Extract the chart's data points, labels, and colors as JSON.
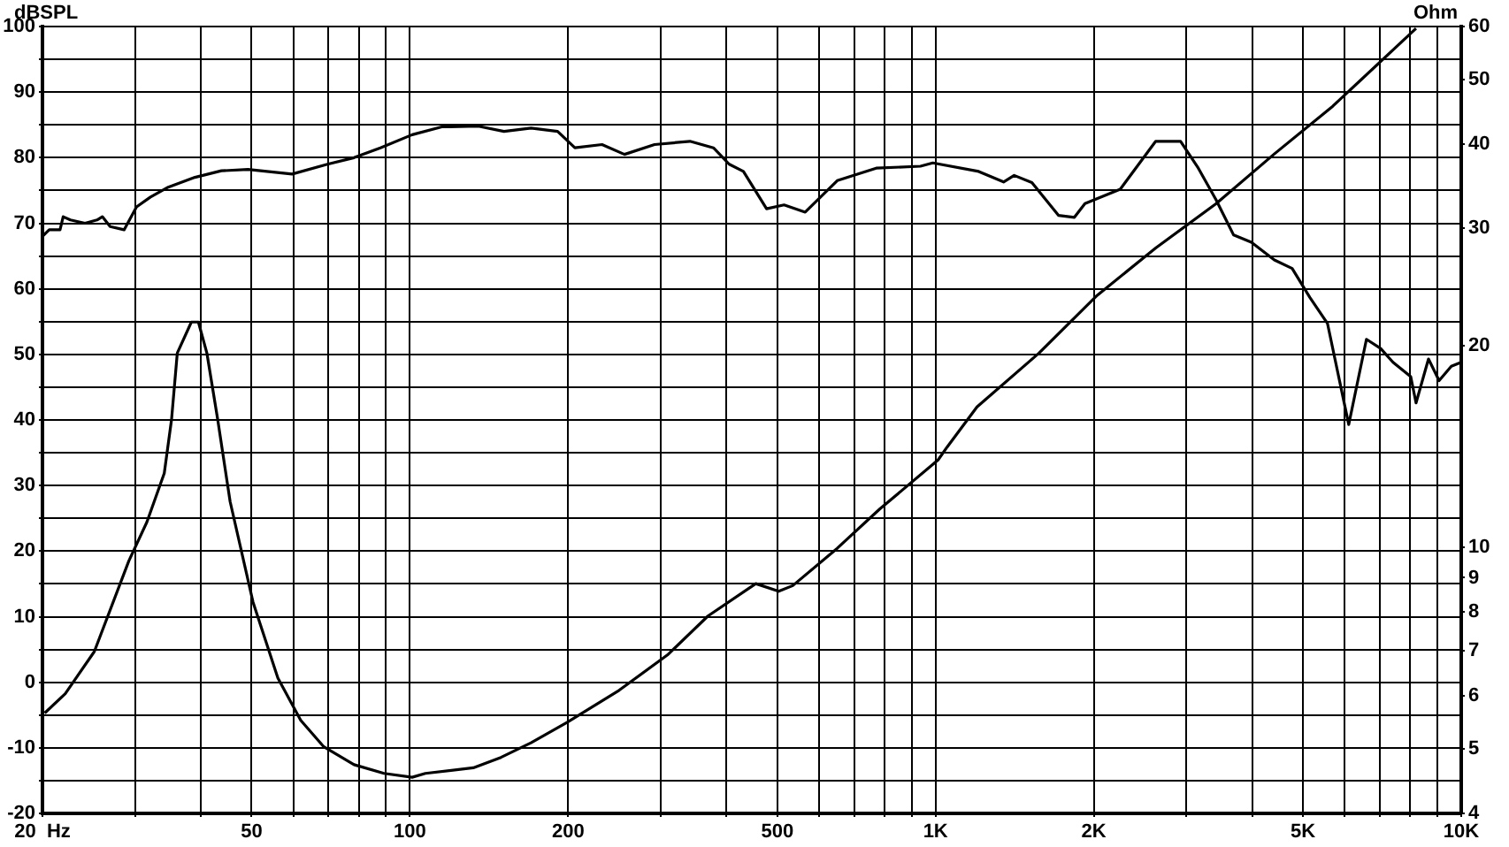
{
  "chart_data": {
    "type": "line",
    "ylabel": "Ohm",
    "y2label": "dBSPL",
    "log": "xy",
    "grid": true,
    "marker": "none",
    "line_style": "solid",
    "xlim": [
      20,
      10000
    ],
    "xticks": [
      {
        "value": 20,
        "label": "20  Hz"
      },
      {
        "value": 30,
        "label": null
      },
      {
        "value": 40,
        "label": null
      },
      50,
      {
        "value": 60,
        "label": null
      },
      {
        "value": 70,
        "label": null
      },
      {
        "value": 80,
        "label": null
      },
      {
        "value": 90,
        "label": null
      },
      100,
      200,
      {
        "value": 300,
        "label": null
      },
      {
        "value": 400,
        "label": null
      },
      500,
      {
        "value": 600,
        "label": null
      },
      {
        "value": 700,
        "label": null
      },
      {
        "value": 800,
        "label": null
      },
      {
        "value": 900,
        "label": null
      },
      {
        "value": 1000,
        "label": "1K"
      },
      {
        "value": 2000,
        "label": "2K"
      },
      {
        "value": 3000,
        "label": null
      },
      {
        "value": 4000,
        "label": null
      },
      {
        "value": 5000,
        "label": "5K"
      },
      {
        "value": 6000,
        "label": null
      },
      {
        "value": 7000,
        "label": null
      },
      {
        "value": 8000,
        "label": null
      },
      {
        "value": 9000,
        "label": null
      },
      {
        "value": 10000,
        "label": "10K"
      }
    ],
    "ylim": [
      4,
      60
    ],
    "yticks": [
      4,
      5,
      6,
      7,
      8,
      9,
      10,
      20,
      30,
      40,
      50,
      60
    ],
    "y2lim": [
      -20,
      100
    ],
    "y2ticks": [
      -20,
      {
        "value": -15,
        "label": null
      },
      -10,
      {
        "value": -5,
        "label": null
      },
      0,
      {
        "value": 5,
        "label": null
      },
      10,
      {
        "value": 15,
        "label": null
      },
      20,
      {
        "value": 25,
        "label": null
      },
      30,
      {
        "value": 35,
        "label": null
      },
      40,
      {
        "value": 45,
        "label": null
      },
      50,
      {
        "value": 55,
        "label": null
      },
      60,
      {
        "value": 65,
        "label": null
      },
      70,
      {
        "value": 75,
        "label": null
      },
      80,
      {
        "value": 85,
        "label": null
      },
      90,
      {
        "value": 95,
        "label": null
      },
      100
    ],
    "series": [
      {
        "color": "#000000",
        "axis": "y2",
        "x": [
          20,
          20.6,
          21.6,
          21.9,
          22.6,
          24.1,
          25.4,
          26,
          26.9,
          28.6,
          30.2,
          32.1,
          34.7,
          39,
          43.8,
          49.2,
          59.7,
          69.7,
          78.3,
          87.9,
          101,
          115,
          135,
          151,
          170,
          191,
          206,
          232,
          256,
          292,
          341,
          378,
          405,
          431,
          477,
          515,
          565,
          650,
          771,
          936,
          988,
          1208,
          1347,
          1411,
          1525,
          1713,
          1837,
          1924,
          2246,
          2623,
          2925,
          3161,
          3415,
          3690,
          3988,
          4410,
          4768,
          5152,
          5567,
          6109,
          6602,
          7025,
          7416,
          8016,
          8204,
          8664,
          9076,
          9575,
          10000
        ],
        "values": [
          68,
          69,
          69,
          71,
          70.5,
          70,
          70.5,
          71,
          69.5,
          69,
          72.5,
          74,
          75.5,
          77,
          78,
          78.2,
          77.5,
          79,
          80,
          81.5,
          83.5,
          84.7,
          84.8,
          84,
          84.5,
          84,
          81.5,
          82,
          80.5,
          82,
          82.5,
          81.5,
          79,
          77.9,
          72.2,
          72.8,
          71.7,
          76.5,
          78.4,
          78.7,
          79.2,
          77.9,
          76.3,
          77.3,
          76.2,
          71.2,
          70.9,
          73,
          75.2,
          82.5,
          82.5,
          78.4,
          73.6,
          68.2,
          67.1,
          64.4,
          63.1,
          58.7,
          54.7,
          39.3,
          52.3,
          50.9,
          48.8,
          46.6,
          42.6,
          49.3,
          46,
          48.2,
          48.8
        ]
      },
      {
        "color": "#000000",
        "x": [
          20.2,
          22.1,
          25.1,
          29.2,
          31.6,
          34.1,
          35.2,
          36.1,
          38.4,
          39.6,
          41.1,
          43.1,
          45.5,
          50.3,
          56.1,
          62,
          68.6,
          78.3,
          89.3,
          101,
          107,
          132,
          149,
          170,
          199,
          250,
          309,
          369,
          455,
          503,
          535,
          650,
          783,
          1011,
          1051,
          1199,
          1573,
          2031,
          2623,
          3415,
          4410,
          5695,
          8204
        ],
        "values": [
          5.65,
          6.04,
          6.98,
          9.54,
          10.9,
          12.9,
          15.5,
          19.5,
          21.7,
          21.7,
          19.5,
          15.5,
          11.7,
          8.28,
          6.37,
          5.51,
          5.03,
          4.73,
          4.59,
          4.53,
          4.59,
          4.68,
          4.85,
          5.1,
          5.47,
          6.11,
          6.9,
          7.89,
          8.82,
          8.59,
          8.76,
          9.96,
          11.4,
          13.5,
          14.1,
          16.2,
          19.5,
          23.8,
          28,
          32.6,
          38.7,
          45.6,
          59.6
        ]
      }
    ]
  }
}
